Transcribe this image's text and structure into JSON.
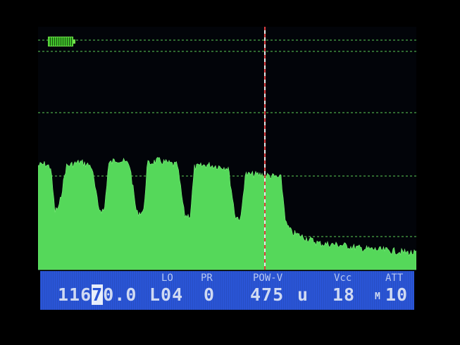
{
  "status": {
    "battery_icon": "battery-full-icon",
    "labels": {
      "lo": "LO",
      "pr": "PR",
      "pow": "POW-V",
      "vcc": "Vcc",
      "att": "ATT"
    },
    "frequency": {
      "before": "116",
      "cursor_digit": "7",
      "after": "0.0"
    },
    "lo_value": "L04",
    "pr_value": "0",
    "pow_value": "475",
    "pow_unit": "u",
    "vcc_value": "18",
    "att_prefix": "M",
    "att_value": "10"
  },
  "colors": {
    "trace": "#55d85a",
    "status_bar": "#2a55d6",
    "cursor": "#e04040",
    "grid": "#2f6a30"
  }
}
